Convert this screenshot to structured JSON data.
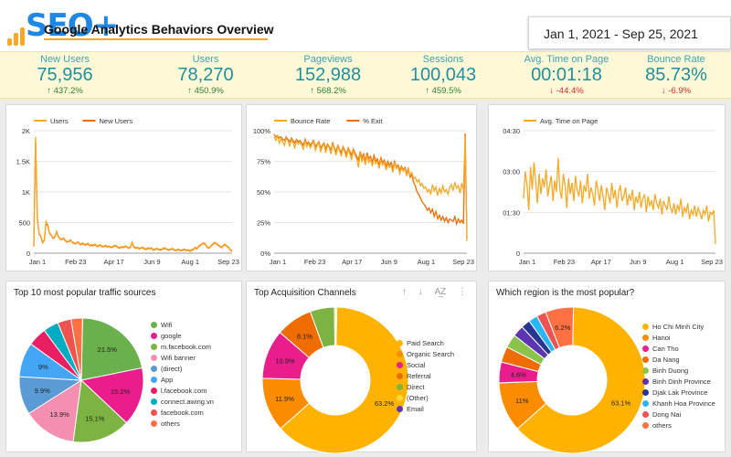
{
  "header": {
    "logo_text": "SEO+",
    "title": "Google Analytics Behaviors Overview",
    "date_range": "Jan 1, 2021 - Sep 25, 2021"
  },
  "colors": {
    "orange": "#f9a825",
    "dark_orange": "#ef6c00",
    "teal": "#1f8f9f"
  },
  "kpis": [
    {
      "label": "New Users",
      "value": "75,956",
      "change": "437.2%",
      "direction": "up"
    },
    {
      "label": "Users",
      "value": "78,270",
      "change": "450.9%",
      "direction": "up"
    },
    {
      "label": "Pageviews",
      "value": "152,988",
      "change": "568.2%",
      "direction": "up"
    },
    {
      "label": "Sessions",
      "value": "100,043",
      "change": "459.5%",
      "direction": "up"
    },
    {
      "label": "Avg. Time on Page",
      "value": "00:01:18",
      "change": "-44.4%",
      "direction": "down"
    },
    {
      "label": "Bounce Rate",
      "value": "85.73%",
      "change": "-6.9%",
      "direction": "down"
    }
  ],
  "chart_data": [
    {
      "type": "line",
      "title": "",
      "x_ticks": [
        "Jan 1",
        "Feb 23",
        "Apr 17",
        "Jun 9",
        "Aug 1",
        "Sep 23"
      ],
      "y_ticks": [
        "2K",
        "1.5K",
        "1K",
        "500",
        "0"
      ],
      "ylim": [
        0,
        2000
      ],
      "series": [
        {
          "name": "Users",
          "color": "#f9a825",
          "values": [
            120,
            1900,
            600,
            320,
            280,
            180,
            220,
            520,
            460,
            330,
            300,
            250,
            270,
            360,
            280,
            240,
            230,
            250,
            210,
            190,
            200,
            220,
            180,
            170,
            160,
            190,
            160,
            150,
            170,
            140,
            150,
            160,
            130,
            140,
            130,
            150,
            120,
            130,
            140,
            110,
            120,
            130,
            110,
            120,
            100,
            110,
            130,
            120,
            100,
            90,
            110,
            100,
            120,
            110,
            90,
            100,
            180,
            110,
            90,
            100,
            80,
            90,
            100,
            80,
            70,
            90,
            80,
            90,
            60,
            70,
            80,
            70,
            60,
            70,
            90,
            80,
            70,
            60,
            70,
            80,
            60,
            50,
            70,
            60,
            50,
            60,
            70,
            50,
            60,
            40,
            60,
            70,
            100,
            80,
            120,
            140,
            160,
            170,
            140,
            100,
            90,
            130,
            150,
            180,
            160,
            140,
            120,
            100,
            130,
            150,
            120,
            100,
            60,
            40
          ]
        },
        {
          "name": "New Users",
          "color": "#ef6c00",
          "values": [
            110,
            1850,
            580,
            310,
            270,
            170,
            210,
            500,
            440,
            320,
            290,
            240,
            260,
            350,
            270,
            230,
            220,
            240,
            200,
            180,
            190,
            210,
            170,
            160,
            150,
            180,
            150,
            140,
            160,
            130,
            140,
            150,
            120,
            130,
            120,
            140,
            110,
            120,
            130,
            100,
            110,
            120,
            100,
            110,
            90,
            100,
            120,
            110,
            90,
            80,
            100,
            90,
            110,
            100,
            80,
            90,
            170,
            100,
            80,
            90,
            70,
            80,
            90,
            70,
            60,
            80,
            70,
            80,
            50,
            60,
            70,
            60,
            50,
            60,
            80,
            70,
            60,
            50,
            60,
            70,
            50,
            40,
            60,
            50,
            40,
            50,
            60,
            40,
            50,
            30,
            50,
            60,
            90,
            70,
            110,
            130,
            150,
            160,
            130,
            90,
            80,
            120,
            140,
            170,
            150,
            130,
            110,
            90,
            120,
            140,
            110,
            90,
            50,
            30
          ]
        }
      ]
    },
    {
      "type": "line",
      "title": "",
      "x_ticks": [
        "Jan 1",
        "Feb 23",
        "Apr 17",
        "Jun 9",
        "Aug 1",
        "Sep 23"
      ],
      "y_ticks": [
        "100%",
        "75%",
        "50%",
        "25%",
        "0%"
      ],
      "ylim": [
        0,
        100
      ],
      "series": [
        {
          "name": "Bounce Rate",
          "color": "#f9a825",
          "values": [
            95,
            92,
            96,
            90,
            93,
            91,
            88,
            94,
            92,
            87,
            93,
            90,
            86,
            92,
            89,
            91,
            88,
            85,
            92,
            87,
            90,
            86,
            89,
            91,
            84,
            88,
            90,
            83,
            87,
            89,
            82,
            88,
            86,
            81,
            89,
            85,
            80,
            87,
            84,
            79,
            86,
            83,
            78,
            85,
            81,
            76,
            84,
            80,
            77,
            70,
            82,
            75,
            79,
            72,
            80,
            74,
            77,
            71,
            78,
            73,
            75,
            69,
            76,
            72,
            74,
            68,
            73,
            70,
            72,
            66,
            74,
            69,
            71,
            65,
            70,
            67,
            69,
            63,
            68,
            64,
            66,
            61,
            62,
            58,
            60,
            55,
            57,
            53,
            54,
            50,
            52,
            48,
            56,
            51,
            54,
            47,
            53,
            49,
            55,
            50,
            52,
            48,
            54,
            56,
            51,
            58,
            53,
            55,
            49,
            57,
            52,
            95,
            10
          ]
        },
        {
          "name": "% Exit",
          "color": "#ef6c00",
          "values": [
            97,
            95,
            96,
            94,
            95,
            93,
            92,
            95,
            93,
            91,
            94,
            92,
            90,
            93,
            91,
            92,
            90,
            88,
            93,
            89,
            91,
            88,
            90,
            92,
            87,
            89,
            91,
            86,
            88,
            90,
            85,
            89,
            87,
            84,
            90,
            86,
            83,
            88,
            85,
            82,
            87,
            84,
            81,
            86,
            83,
            80,
            85,
            82,
            79,
            76,
            83,
            78,
            81,
            75,
            82,
            77,
            79,
            74,
            80,
            75,
            77,
            72,
            78,
            74,
            76,
            71,
            75,
            72,
            74,
            69,
            75,
            70,
            72,
            68,
            71,
            68,
            70,
            65,
            69,
            62,
            64,
            58,
            55,
            50,
            48,
            45,
            42,
            40,
            38,
            35,
            37,
            33,
            36,
            30,
            34,
            28,
            31,
            27,
            30,
            26,
            29,
            25,
            28,
            27,
            26,
            30,
            24,
            28,
            25,
            27,
            24,
            98,
            12
          ]
        }
      ]
    },
    {
      "type": "line",
      "title": "",
      "x_ticks": [
        "Jan 1",
        "Feb 23",
        "Apr 17",
        "Jun 9",
        "Aug 1",
        "Sep 23"
      ],
      "y_ticks": [
        "04:30",
        "03:00",
        "01:30",
        "0"
      ],
      "ylim": [
        0,
        270
      ],
      "series": [
        {
          "name": "Avg. Time on Page",
          "color": "#f9a825",
          "values": [
            120,
            180,
            150,
            95,
            190,
            140,
            200,
            160,
            110,
            175,
            130,
            165,
            145,
            185,
            125,
            150,
            170,
            115,
            160,
            135,
            210,
            140,
            120,
            175,
            150,
            100,
            165,
            130,
            155,
            115,
            170,
            140,
            125,
            160,
            110,
            150,
            135,
            175,
            120,
            145,
            130,
            105,
            160,
            140,
            115,
            150,
            125,
            95,
            145,
            130,
            110,
            155,
            120,
            140,
            100,
            135,
            150,
            115,
            125,
            145,
            105,
            130,
            115,
            140,
            95,
            125,
            110,
            135,
            100,
            120,
            130,
            90,
            125,
            105,
            115,
            95,
            130,
            110,
            100,
            120,
            85,
            115,
            105,
            95,
            125,
            100,
            90,
            110,
            85,
            105,
            95,
            120,
            80,
            100,
            90,
            110,
            75,
            95,
            85,
            105,
            80,
            100,
            90,
            75,
            95,
            85,
            105,
            70,
            90,
            85,
            95,
            20
          ]
        }
      ]
    },
    {
      "type": "pie",
      "title": "Top 10 most popular traffic sources",
      "labels": [
        "Wifi",
        "google",
        "m.facebook.com",
        "Wifi banner",
        "(direct)",
        "App",
        "l.facebook.com",
        "connect.awing.vn",
        "facebook.com",
        "others"
      ],
      "values": [
        21.5,
        15.2,
        15.1,
        13.9,
        9.9,
        9,
        4.9,
        4,
        3.5,
        3
      ],
      "data_labels": [
        "21.5%",
        "15.2%",
        "15.1%",
        "13.9%",
        "9.9%",
        "9%",
        "",
        "",
        "",
        ""
      ],
      "colors": [
        "#6ab04c",
        "#e91e8c",
        "#7cb342",
        "#f48fb1",
        "#5b9bd5",
        "#42a5f5",
        "#e91e63",
        "#00acc1",
        "#ef5350",
        "#ff7043"
      ]
    },
    {
      "type": "pie",
      "title": "Top Acquisition Channels",
      "labels": [
        "Paid Search",
        "Organic Search",
        "Social",
        "Referral",
        "Direct",
        "(Other)",
        "Email"
      ],
      "values": [
        63.2,
        11.9,
        10.9,
        8.1,
        5.4,
        0.3,
        0.2
      ],
      "data_labels": [
        "63.2%",
        "11.9%",
        "10.9%",
        "8.1%",
        "",
        "",
        ""
      ],
      "colors": [
        "#ffb300",
        "#fb8c00",
        "#e91e8c",
        "#ef6c00",
        "#7cb342",
        "#fdd835",
        "#5e35b1"
      ]
    },
    {
      "type": "pie",
      "title": "Which region is the most popular?",
      "labels": [
        "Ho Chi Minh City",
        "Hanoi",
        "Can Tho",
        "Da Nang",
        "Binh Duong",
        "Binh Dinh Province",
        "Djak Lak Province",
        "Khanh Hoa Province",
        "Dong Nai",
        "others"
      ],
      "values": [
        63.1,
        11,
        4.6,
        3.5,
        3,
        2.5,
        2,
        2,
        2.1,
        6.2
      ],
      "data_labels": [
        "63.1%",
        "11%",
        "4.6%",
        "",
        "",
        "",
        "",
        "",
        "",
        "6.2%"
      ],
      "colors": [
        "#ffb300",
        "#fb8c00",
        "#e91e8c",
        "#ef6c00",
        "#8bc34a",
        "#5e35b1",
        "#283593",
        "#29b6f6",
        "#ef5350",
        "#ff7043"
      ]
    }
  ],
  "toolbar": {
    "up": "↑",
    "down": "↓",
    "sort": "A͢Z",
    "more": "⋮"
  }
}
